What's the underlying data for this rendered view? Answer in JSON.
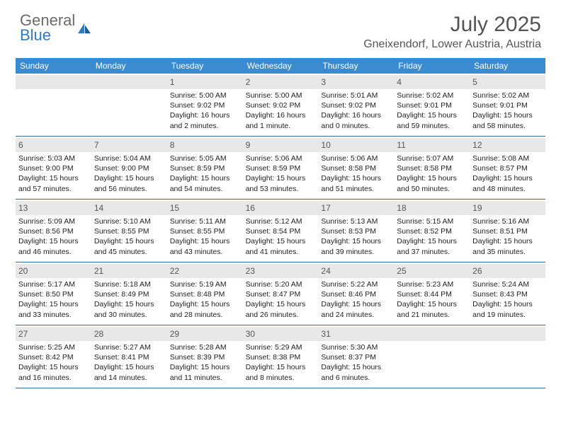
{
  "brand": {
    "general": "General",
    "blue": "Blue"
  },
  "title": "July 2025",
  "location": "Gneixendorf, Lower Austria, Austria",
  "dow": [
    "Sunday",
    "Monday",
    "Tuesday",
    "Wednesday",
    "Thursday",
    "Friday",
    "Saturday"
  ],
  "colors": {
    "header_bar": "#3a8bd0",
    "row_divider": "#3a6a94",
    "daynum_bg": "#e8e8e8",
    "brand_gray": "#6b6b6b",
    "brand_blue": "#2f7cc0"
  },
  "weeks": [
    [
      null,
      null,
      {
        "n": "1",
        "sr": "5:00 AM",
        "ss": "9:02 PM",
        "dl": "16 hours and 2 minutes."
      },
      {
        "n": "2",
        "sr": "5:00 AM",
        "ss": "9:02 PM",
        "dl": "16 hours and 1 minute."
      },
      {
        "n": "3",
        "sr": "5:01 AM",
        "ss": "9:02 PM",
        "dl": "16 hours and 0 minutes."
      },
      {
        "n": "4",
        "sr": "5:02 AM",
        "ss": "9:01 PM",
        "dl": "15 hours and 59 minutes."
      },
      {
        "n": "5",
        "sr": "5:02 AM",
        "ss": "9:01 PM",
        "dl": "15 hours and 58 minutes."
      }
    ],
    [
      {
        "n": "6",
        "sr": "5:03 AM",
        "ss": "9:00 PM",
        "dl": "15 hours and 57 minutes."
      },
      {
        "n": "7",
        "sr": "5:04 AM",
        "ss": "9:00 PM",
        "dl": "15 hours and 56 minutes."
      },
      {
        "n": "8",
        "sr": "5:05 AM",
        "ss": "8:59 PM",
        "dl": "15 hours and 54 minutes."
      },
      {
        "n": "9",
        "sr": "5:06 AM",
        "ss": "8:59 PM",
        "dl": "15 hours and 53 minutes."
      },
      {
        "n": "10",
        "sr": "5:06 AM",
        "ss": "8:58 PM",
        "dl": "15 hours and 51 minutes."
      },
      {
        "n": "11",
        "sr": "5:07 AM",
        "ss": "8:58 PM",
        "dl": "15 hours and 50 minutes."
      },
      {
        "n": "12",
        "sr": "5:08 AM",
        "ss": "8:57 PM",
        "dl": "15 hours and 48 minutes."
      }
    ],
    [
      {
        "n": "13",
        "sr": "5:09 AM",
        "ss": "8:56 PM",
        "dl": "15 hours and 46 minutes."
      },
      {
        "n": "14",
        "sr": "5:10 AM",
        "ss": "8:55 PM",
        "dl": "15 hours and 45 minutes."
      },
      {
        "n": "15",
        "sr": "5:11 AM",
        "ss": "8:55 PM",
        "dl": "15 hours and 43 minutes."
      },
      {
        "n": "16",
        "sr": "5:12 AM",
        "ss": "8:54 PM",
        "dl": "15 hours and 41 minutes."
      },
      {
        "n": "17",
        "sr": "5:13 AM",
        "ss": "8:53 PM",
        "dl": "15 hours and 39 minutes."
      },
      {
        "n": "18",
        "sr": "5:15 AM",
        "ss": "8:52 PM",
        "dl": "15 hours and 37 minutes."
      },
      {
        "n": "19",
        "sr": "5:16 AM",
        "ss": "8:51 PM",
        "dl": "15 hours and 35 minutes."
      }
    ],
    [
      {
        "n": "20",
        "sr": "5:17 AM",
        "ss": "8:50 PM",
        "dl": "15 hours and 33 minutes."
      },
      {
        "n": "21",
        "sr": "5:18 AM",
        "ss": "8:49 PM",
        "dl": "15 hours and 30 minutes."
      },
      {
        "n": "22",
        "sr": "5:19 AM",
        "ss": "8:48 PM",
        "dl": "15 hours and 28 minutes."
      },
      {
        "n": "23",
        "sr": "5:20 AM",
        "ss": "8:47 PM",
        "dl": "15 hours and 26 minutes."
      },
      {
        "n": "24",
        "sr": "5:22 AM",
        "ss": "8:46 PM",
        "dl": "15 hours and 24 minutes."
      },
      {
        "n": "25",
        "sr": "5:23 AM",
        "ss": "8:44 PM",
        "dl": "15 hours and 21 minutes."
      },
      {
        "n": "26",
        "sr": "5:24 AM",
        "ss": "8:43 PM",
        "dl": "15 hours and 19 minutes."
      }
    ],
    [
      {
        "n": "27",
        "sr": "5:25 AM",
        "ss": "8:42 PM",
        "dl": "15 hours and 16 minutes."
      },
      {
        "n": "28",
        "sr": "5:27 AM",
        "ss": "8:41 PM",
        "dl": "15 hours and 14 minutes."
      },
      {
        "n": "29",
        "sr": "5:28 AM",
        "ss": "8:39 PM",
        "dl": "15 hours and 11 minutes."
      },
      {
        "n": "30",
        "sr": "5:29 AM",
        "ss": "8:38 PM",
        "dl": "15 hours and 8 minutes."
      },
      {
        "n": "31",
        "sr": "5:30 AM",
        "ss": "8:37 PM",
        "dl": "15 hours and 6 minutes."
      },
      null,
      null
    ]
  ],
  "labels": {
    "sunrise": "Sunrise: ",
    "sunset": "Sunset: ",
    "daylight": "Daylight: "
  }
}
